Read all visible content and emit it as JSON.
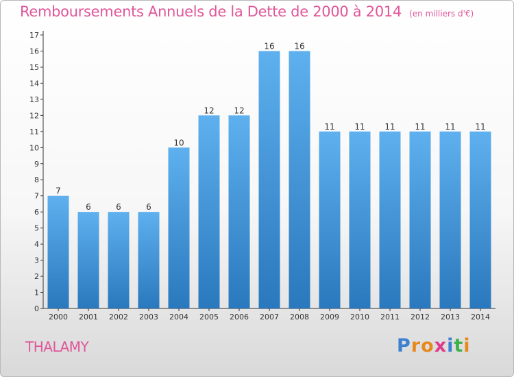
{
  "title": "Remboursements Annuels de la Dette de 2000 à 2014",
  "unit": "(en milliers d'€)",
  "commune": "THALAMY",
  "logo": {
    "text": "Proxiti",
    "letters": [
      "P",
      "r",
      "o",
      "x",
      "i",
      "t",
      "i"
    ],
    "colors": [
      "#3d7fd0",
      "#e68a1e",
      "#e68a1e",
      "#e03a8c",
      "#3d7fd0",
      "#3db24a",
      "#e68a1e"
    ]
  },
  "chart_data": {
    "type": "bar",
    "title": "Remboursements Annuels de la Dette de 2000 à 2014",
    "unit": "(en milliers d'€)",
    "categories": [
      "2000",
      "2001",
      "2002",
      "2003",
      "2004",
      "2005",
      "2006",
      "2007",
      "2008",
      "2009",
      "2010",
      "2011",
      "2012",
      "2013",
      "2014"
    ],
    "values": [
      7,
      6,
      6,
      6,
      10,
      12,
      12,
      16,
      16,
      11,
      11,
      11,
      11,
      11,
      11
    ],
    "labels": [
      "7",
      "6",
      "6",
      "6",
      "10",
      "12",
      "12",
      "16",
      "16",
      "11",
      "11",
      "11",
      "11",
      "11",
      "11"
    ],
    "ylim": [
      0,
      17
    ],
    "yticks": [
      0,
      1,
      2,
      3,
      4,
      5,
      6,
      7,
      8,
      9,
      10,
      11,
      12,
      13,
      14,
      15,
      16,
      17
    ],
    "grid": false,
    "legend": "none",
    "colors": {
      "bar_top": "#5eb0ee",
      "bar_bottom": "#2a78bd",
      "text": "#333333",
      "title": "#e0569a"
    }
  }
}
